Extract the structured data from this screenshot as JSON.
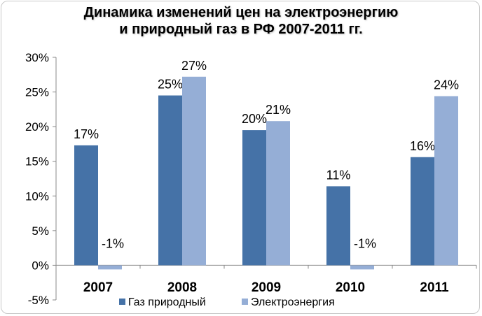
{
  "chart_data": {
    "type": "bar",
    "title_line1": "Динамика изменений цен на электроэнергию",
    "title_line2": "и природный газ в РФ 2007-2011 гг.",
    "categories": [
      "2007",
      "2008",
      "2009",
      "2010",
      "2011"
    ],
    "series": [
      {
        "name": "Газ природный",
        "values": [
          17.3,
          24.5,
          19.5,
          11.4,
          15.6
        ],
        "labels": [
          "17%",
          "25%",
          "20%",
          "11%",
          "16%"
        ],
        "color": "#4572a7"
      },
      {
        "name": "Электроэнергия",
        "values": [
          -0.6,
          27.2,
          20.8,
          -0.6,
          24.4
        ],
        "labels": [
          "-1%",
          "27%",
          "21%",
          "-1%",
          "24%"
        ],
        "color": "#95aed6"
      }
    ],
    "yticks": [
      "30%",
      "25%",
      "20%",
      "15%",
      "10%",
      "5%",
      "0%",
      "-5%"
    ],
    "ytick_values": [
      30,
      25,
      20,
      15,
      10,
      5,
      0,
      -5
    ],
    "ylim": [
      -5,
      30
    ],
    "legend_position": "bottom",
    "grid": false
  }
}
